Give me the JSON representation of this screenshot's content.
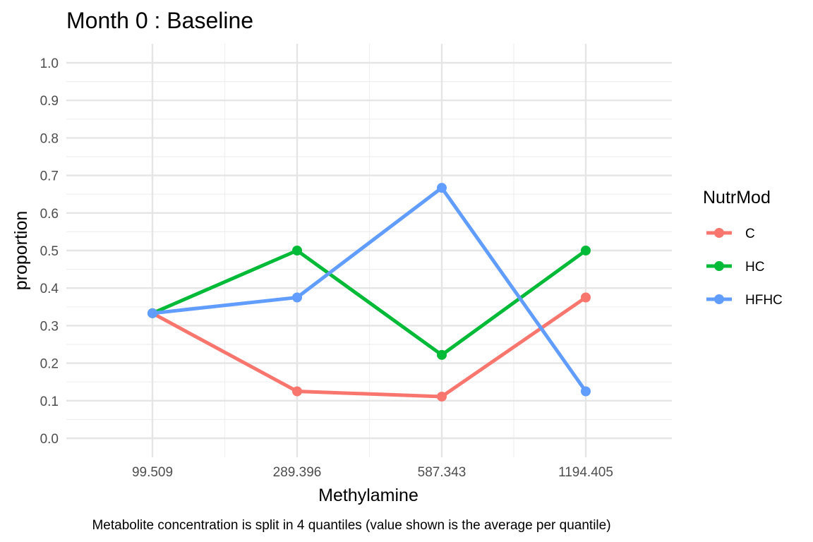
{
  "chart_data": {
    "type": "line",
    "title": "Month 0 : Baseline",
    "xlabel": "Methylamine",
    "ylabel": "proportion",
    "caption": "Metabolite concentration is split in 4 quantiles (value shown is the average per quantile)",
    "categories": [
      "99.509",
      "289.396",
      "587.343",
      "1194.405"
    ],
    "ylim": [
      0.0,
      1.0
    ],
    "yticks": [
      "0.0",
      "0.1",
      "0.2",
      "0.3",
      "0.4",
      "0.5",
      "0.6",
      "0.7",
      "0.8",
      "0.9",
      "1.0"
    ],
    "grid": true,
    "legend": {
      "title": "NutrMod",
      "position": "right"
    },
    "series": [
      {
        "name": "C",
        "color": "#F8766D",
        "values": [
          0.333,
          0.125,
          0.111,
          0.375
        ]
      },
      {
        "name": "HC",
        "color": "#00BA38",
        "values": [
          0.333,
          0.5,
          0.222,
          0.5
        ]
      },
      {
        "name": "HFHC",
        "color": "#619CFF",
        "values": [
          0.333,
          0.375,
          0.667,
          0.125
        ]
      }
    ]
  }
}
